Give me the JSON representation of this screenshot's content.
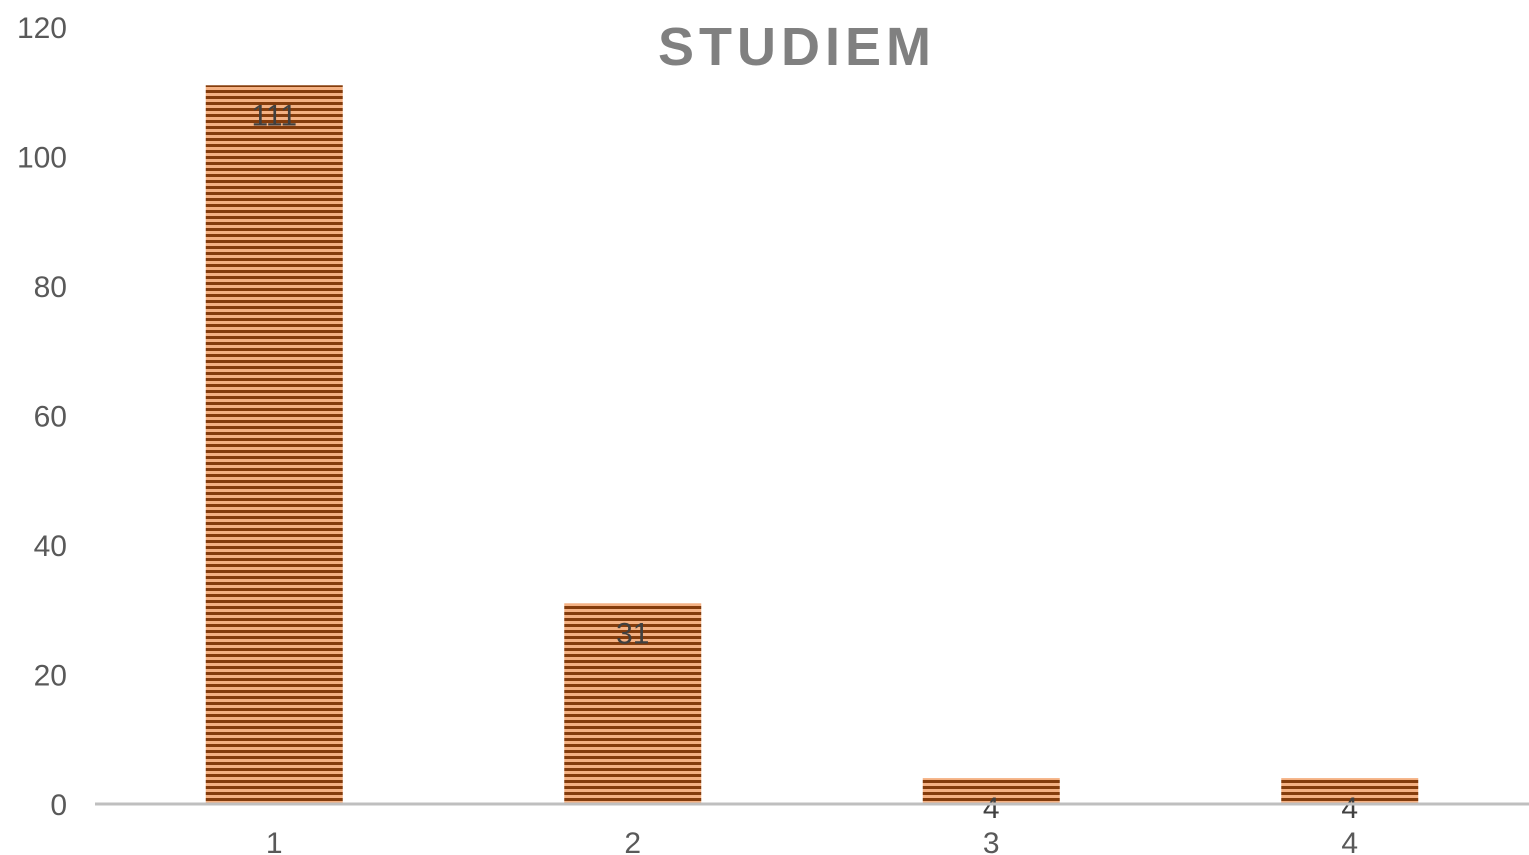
{
  "chart_data": {
    "type": "bar",
    "title": "STUDIEM",
    "xlabel": "",
    "ylabel": "",
    "categories": [
      "1",
      "2",
      "3",
      "4"
    ],
    "values": [
      111,
      31,
      4,
      4
    ],
    "data_labels": [
      "111",
      "31",
      "4",
      "4"
    ],
    "ylim": [
      0,
      120
    ],
    "yticks": [
      0,
      20,
      40,
      60,
      80,
      100,
      120
    ],
    "ytick_labels": [
      "0",
      "20",
      "40",
      "60",
      "80",
      "100",
      "120"
    ],
    "grid": false,
    "legend": "none",
    "colors": {
      "bar_light": "#f4b183",
      "bar_dark": "#843c0c",
      "axis": "#bfbfbf"
    }
  }
}
